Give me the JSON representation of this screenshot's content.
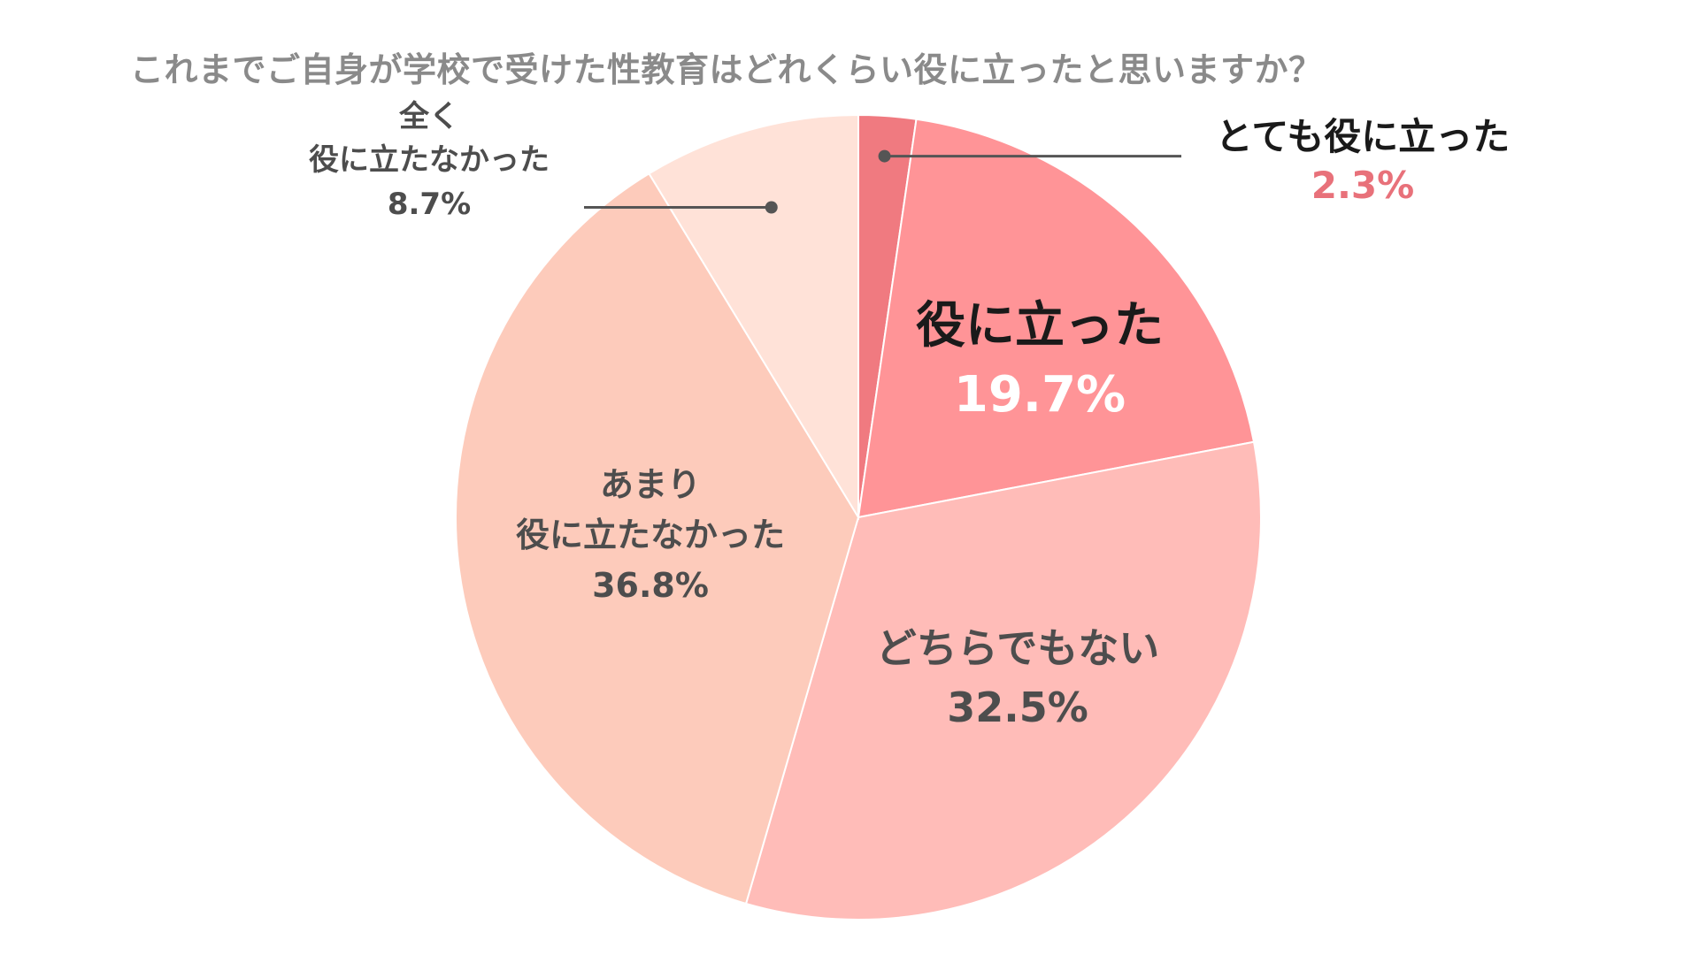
{
  "chart_data": {
    "type": "pie",
    "title": "これまでご自身が学校で受けた性教育はどれくらい役に立ったと思いますか？",
    "slices": [
      {
        "label": "とても役に立った",
        "value": 2.3,
        "display": "2.3%",
        "color": "#f07a80"
      },
      {
        "label": "役に立った",
        "value": 19.7,
        "display": "19.7%",
        "color": "#ff9497"
      },
      {
        "label": "どちらでもない",
        "value": 32.5,
        "display": "32.5%",
        "color": "#ffbcb8"
      },
      {
        "label": "あまり役に立たなかった",
        "label_lines": [
          "あまり",
          "役に立たなかった"
        ],
        "value": 36.8,
        "display": "36.8%",
        "color": "#fdcbbb"
      },
      {
        "label": "全く役に立たなかった",
        "label_lines": [
          "全く",
          "役に立たなかった"
        ],
        "value": 8.7,
        "display": "8.7%",
        "color": "#ffe2d8"
      }
    ],
    "start": "12 o'clock",
    "direction": "clockwise",
    "legend": "none"
  },
  "colors": {
    "title": "#8a8a8a",
    "label_dark": "#4d4d4d",
    "label_black": "#1a1a1a",
    "label_white": "#ffffff",
    "accent_value": "#e8717a",
    "leader_line": "#555555"
  }
}
